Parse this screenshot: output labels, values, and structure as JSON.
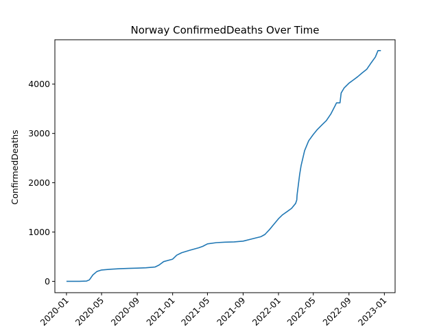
{
  "chart_data": {
    "type": "line",
    "title": "Norway  ConfirmedDeaths Over Time",
    "xlabel": "",
    "ylabel": "ConfirmedDeaths",
    "x_tick_labels": [
      "2020-01",
      "2020-05",
      "2020-09",
      "2021-01",
      "2021-05",
      "2021-09",
      "2022-01",
      "2022-05",
      "2022-09",
      "2023-01"
    ],
    "y_tick_labels": [
      "0",
      "1000",
      "2000",
      "3000",
      "4000"
    ],
    "y_ticks": [
      0,
      1000,
      2000,
      3000,
      4000
    ],
    "ylim": [
      -230,
      4900
    ],
    "xlim": [
      "2019-11-22",
      "2023-02-07"
    ],
    "grid": false,
    "line_color": "#1f77b4",
    "series": [
      {
        "x": [
          "2020-01-01",
          "2020-02-15",
          "2020-03-10",
          "2020-03-20",
          "2020-04-01",
          "2020-04-15",
          "2020-05-01",
          "2020-06-01",
          "2020-07-01",
          "2020-08-01",
          "2020-09-01",
          "2020-10-01",
          "2020-11-01",
          "2020-11-15",
          "2020-12-01",
          "2021-01-01",
          "2021-01-15",
          "2021-02-01",
          "2021-03-01",
          "2021-04-01",
          "2021-04-15",
          "2021-05-01",
          "2021-06-01",
          "2021-07-01",
          "2021-08-01",
          "2021-09-01",
          "2021-10-01",
          "2021-10-15",
          "2021-11-01",
          "2021-11-15",
          "2021-12-01",
          "2021-12-15",
          "2022-01-01",
          "2022-01-15",
          "2022-02-01",
          "2022-02-15",
          "2022-03-01",
          "2022-03-05",
          "2022-03-06",
          "2022-03-15",
          "2022-03-20",
          "2022-04-01",
          "2022-04-15",
          "2022-05-01",
          "2022-05-15",
          "2022-06-01",
          "2022-06-15",
          "2022-07-01",
          "2022-07-15",
          "2022-07-20",
          "2022-08-01",
          "2022-08-05",
          "2022-08-15",
          "2022-09-01",
          "2022-09-15",
          "2022-10-01",
          "2022-10-15",
          "2022-11-01",
          "2022-11-15",
          "2022-12-01",
          "2022-12-10",
          "2022-12-20"
        ],
        "y": [
          0,
          0,
          5,
          30,
          130,
          200,
          230,
          245,
          255,
          262,
          268,
          275,
          290,
          330,
          400,
          450,
          530,
          580,
          630,
          680,
          710,
          760,
          785,
          795,
          800,
          815,
          860,
          880,
          905,
          950,
          1050,
          1150,
          1270,
          1350,
          1420,
          1480,
          1580,
          1650,
          1750,
          2170,
          2350,
          2650,
          2850,
          2980,
          3080,
          3180,
          3260,
          3400,
          3560,
          3620,
          3620,
          3820,
          3920,
          4020,
          4080,
          4150,
          4220,
          4300,
          4420,
          4550,
          4680,
          4680
        ]
      }
    ]
  }
}
